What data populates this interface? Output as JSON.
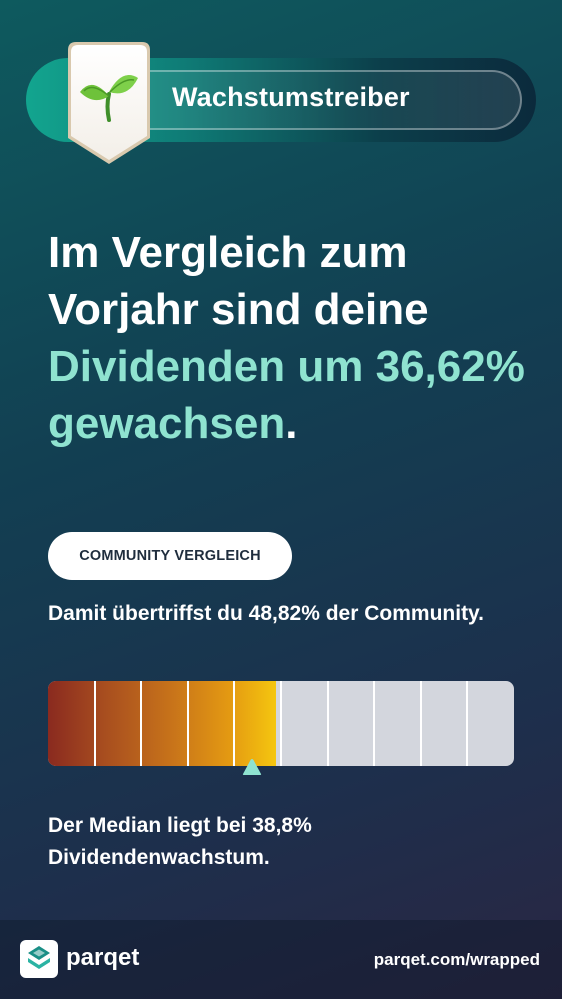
{
  "badge": {
    "label": "Wachstumstreiber",
    "icon": "sprout-icon"
  },
  "headline": {
    "line_white": "Im Vergleich zum Vorjahr sind deine ",
    "line_accent": "Dividenden um 36,62% gewachsen",
    "suffix": "."
  },
  "community": {
    "pill_label": "COMMUNITY VERGLEICH",
    "text": "Damit übertriffst du 48,82% der Community."
  },
  "bar": {
    "percentile": 48.82,
    "segments": 10
  },
  "median": {
    "text": "Der Median liegt bei 38,8% Dividendenwachstum."
  },
  "footer": {
    "brand": "parqet",
    "url": "parqet.com/wrapped"
  },
  "colors": {
    "accent": "#8fe3d0",
    "marker": "#8fe3d0"
  }
}
